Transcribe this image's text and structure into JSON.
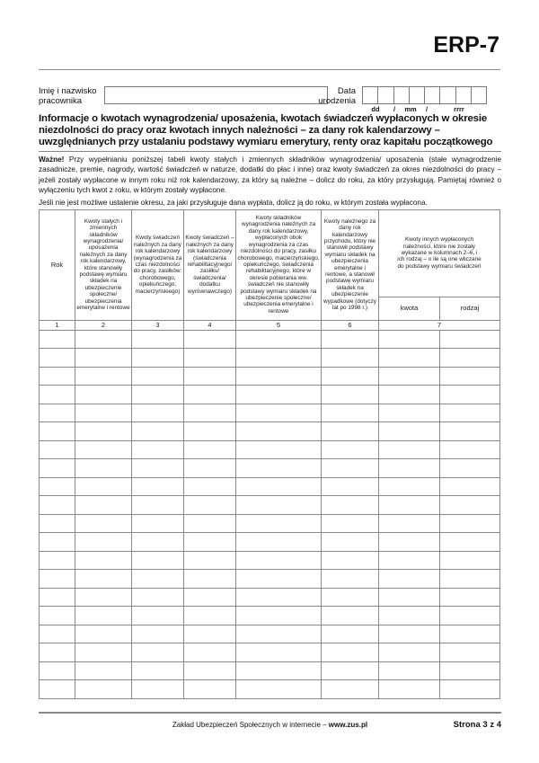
{
  "form_code": "ERP-7",
  "name_label": [
    "Imię i nazwisko",
    "pracownika"
  ],
  "birth_label": [
    "Data",
    "urodzenia"
  ],
  "date_format": {
    "dd": "dd",
    "mm": "mm",
    "rrrr": "rrrr",
    "sep": "/"
  },
  "title": "Informacje o kwotach wynagrodzenia/ uposażenia, kwotach świadczeń wypłaconych w okresie niezdolności do pracy oraz kwotach innych należności – za dany rok kalendarzowy – uwzględnianych przy ustalaniu podstawy wymiaru emerytury, renty oraz kapitału początkowego",
  "note_bold": "Ważne!",
  "note": " Przy wypełnianiu poniższej tabeli kwoty stałych i zmiennych składników wynagrodzenia/ uposażenia (stałe wynagrodzenie zasadnicze, premie, nagrody, wartość świadczeń w naturze, dodatki do płac i inne) oraz kwoty świadczeń za okres niezdolności do pracy – jeżeli zostały wypłacone w innym roku niż rok kalendarzowy, za który są należne – dolicz do roku, za który przysługują. Pamiętaj również o wyłączeniu tych kwot z roku, w którym zostały wypłacone.",
  "note2": "Jeśli nie jest możliwe ustalenie okresu, za jaki przysługuje dana wypłata, dolicz ją do roku, w którym została wypłacona.",
  "table": {
    "headers": [
      "Rok",
      "Kwoty stałych i zmiennych składników wynagrodzenia/ uposażenia należnych za dany rok kalendarzowy, które stanowiły podstawę wymiaru składek na ubezpieczenie społeczne/ ubezpieczenia emerytalne i rentowe",
      "Kwoty świadczeń należnych za dany rok kalendarzowy (wynagrodzenia za czas niezdolności do pracy, zasiłków: chorobowego, opiekuńczego, macierzyńskiego)",
      "Kwoty świadczeń – należnych za dany rok kalendarzowy (świadczenia rehabilitacyjnego/ zasiłku/ świadczenia/ dodatku wyrównawczego)",
      "Kwoty składników wynagrodzenia należnych za dany rok kalendarzowy, wypłaconych obok wynagrodzenia za czas niezdolności do pracy, zasiłku chorobowego, macierzyńskiego, opiekuńczego, świadczenia rehabilitacyjnego, które w okresie pobierania ww. świadczeń nie stanowiły podstawy wymiaru składek na ubezpieczenie społeczne/ ubezpieczenia emerytalne i rentowe",
      "Kwoty należnego za dany rok kalendarzowy przychodu, który nie stanowił podstawy wymiaru składek na ubezpieczenia emerytalne i rentowe, a stanowił podstawę wymiaru składek na ubezpieczenie wypadkowe (dotyczy lat po 1998 r.)",
      "Kwoty innych wypłaconych należności, które nie zostały wykazane w kolumnach 2–6, i ich rodzaj – o ile są one wliczane do podstawy wymiaru świadczeń"
    ],
    "subheaders": [
      "kwota",
      "rodzaj"
    ],
    "numbers": [
      "1",
      "2",
      "3",
      "4",
      "5",
      "6",
      "7"
    ],
    "row_count": 20
  },
  "footer": {
    "text": "Zakład Ubezpieczeń Społecznych w internecie – ",
    "link": "www.zus.pl",
    "page": "Strona 3 z 4"
  }
}
